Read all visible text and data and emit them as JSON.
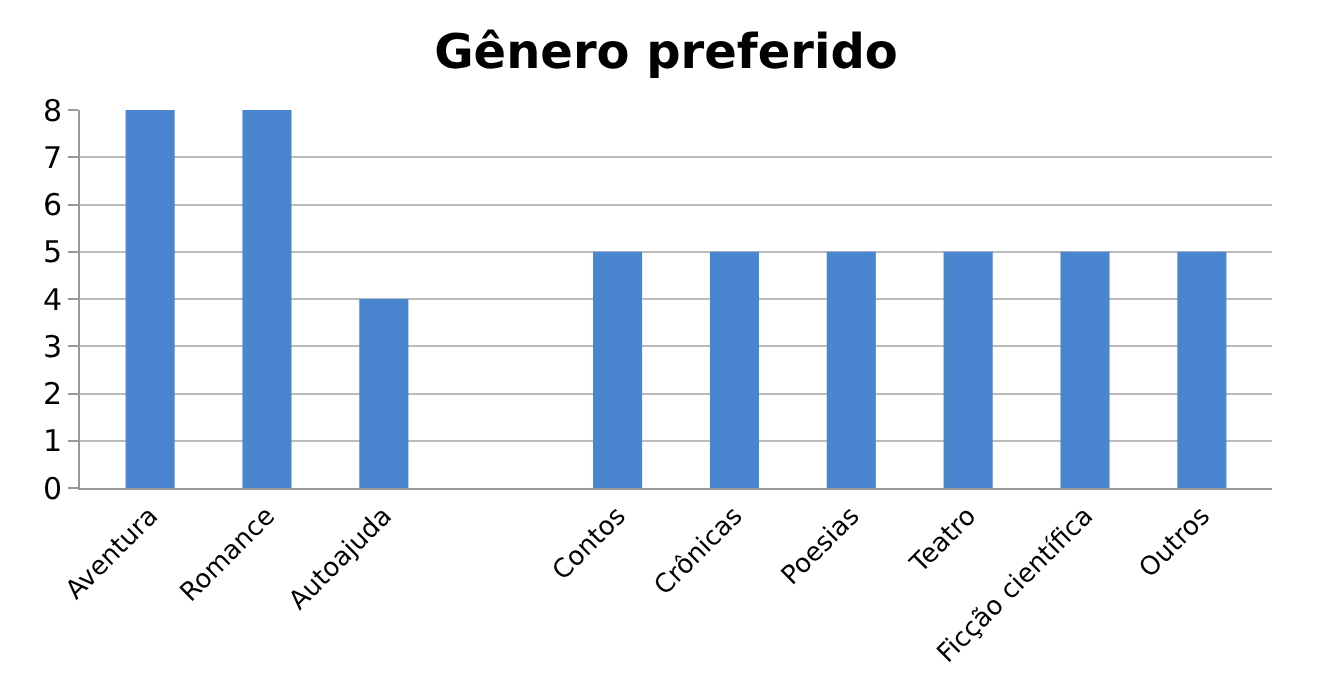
{
  "chart_data": {
    "type": "bar",
    "title": "Gênero preferido",
    "categories": [
      "Aventura",
      "Romance",
      "Autoajuda",
      null,
      "Contos",
      "Crônicas",
      "Poesias",
      "Teatro",
      "Ficção científica",
      "Outros"
    ],
    "values": [
      8,
      8,
      4,
      0,
      5,
      5,
      5,
      5,
      5,
      5
    ],
    "color": "#4a86d0",
    "ylim": [
      0,
      8
    ],
    "yticks": [
      0,
      1,
      2,
      3,
      4,
      5,
      6,
      7,
      8
    ],
    "grid": "y",
    "legend": false
  }
}
